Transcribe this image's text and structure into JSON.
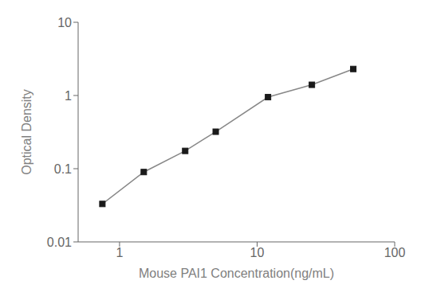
{
  "chart_data": {
    "type": "line",
    "x": [
      0.75,
      1.5,
      3.0,
      5.0,
      12.0,
      25.0,
      50.0
    ],
    "values": [
      0.033,
      0.09,
      0.175,
      0.32,
      0.95,
      1.4,
      2.3
    ],
    "xlim": [
      0.5,
      100
    ],
    "ylim": [
      0.01,
      10
    ],
    "xticks": [
      1,
      10,
      100
    ],
    "yticks": [
      0.01,
      0.1,
      1,
      10
    ],
    "xlabel": "Mouse PAI1 Concentration(ng/mL)",
    "ylabel": "Optical Density",
    "log": true,
    "grid": false,
    "color": "#888888",
    "colors": [
      "#1a1a1a",
      "#1a1a1a",
      "#1a1a1a",
      "#1a1a1a",
      "#1a1a1a",
      "#1a1a1a",
      "#1a1a1a"
    ],
    "marker": "square"
  }
}
